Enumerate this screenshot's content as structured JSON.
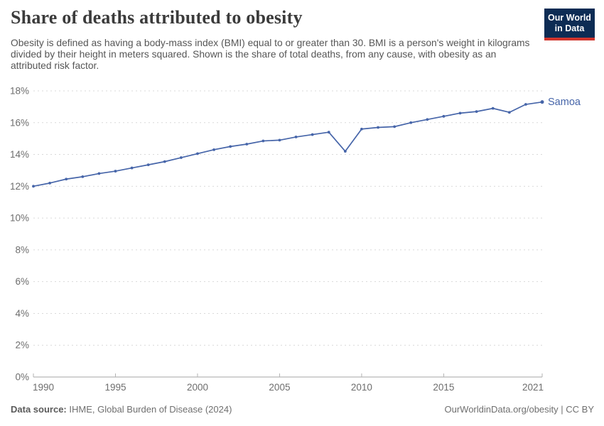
{
  "header": {
    "title": "Share of deaths attributed to obesity",
    "subtitle": "Obesity is defined as having a body-mass index (BMI) equal to or greater than 30. BMI is a person's weight in kilograms divided by their height in meters squared. Shown is the share of total deaths, from any cause, with obesity as an attributed risk factor.",
    "logo": {
      "line1": "Our World",
      "line2": "in Data"
    }
  },
  "chart_data": {
    "type": "line",
    "title": "Share of deaths attributed to obesity",
    "xlabel": "",
    "ylabel": "",
    "xlim": [
      1990,
      2021
    ],
    "ylim": [
      0,
      18
    ],
    "x_ticks": [
      1990,
      1995,
      2000,
      2005,
      2010,
      2015,
      2021
    ],
    "y_ticks": [
      0,
      2,
      4,
      6,
      8,
      10,
      12,
      14,
      16,
      18
    ],
    "y_tick_suffix": "%",
    "grid": "horizontal-dashed",
    "legend_position": "end-of-line-label",
    "series": [
      {
        "name": "Samoa",
        "color": "#4665a9",
        "x": [
          1990,
          1991,
          1992,
          1993,
          1994,
          1995,
          1996,
          1997,
          1998,
          1999,
          2000,
          2001,
          2002,
          2003,
          2004,
          2005,
          2006,
          2007,
          2008,
          2009,
          2010,
          2011,
          2012,
          2013,
          2014,
          2015,
          2016,
          2017,
          2018,
          2019,
          2020,
          2021
        ],
        "values": [
          12.0,
          12.2,
          12.45,
          12.6,
          12.8,
          12.95,
          13.15,
          13.35,
          13.55,
          13.8,
          14.05,
          14.3,
          14.5,
          14.65,
          14.85,
          14.9,
          15.1,
          15.25,
          15.4,
          14.2,
          15.6,
          15.7,
          15.75,
          16.0,
          16.2,
          16.4,
          16.6,
          16.7,
          16.9,
          16.65,
          17.15,
          17.3
        ]
      }
    ]
  },
  "footer": {
    "datasource_label": "Data source:",
    "datasource_value": " IHME, Global Burden of Disease (2024)",
    "link": "OurWorldinData.org/obesity | CC BY"
  },
  "colors": {
    "line": "#4665a9",
    "grid": "#d9d9d9",
    "axis": "#a5a5a5",
    "tick": "#b3b3b3",
    "tick_label": "#6d6d6d",
    "logo_bg": "#0d2c54",
    "logo_bar": "#d0342c",
    "title_text": "#3b3b3b"
  }
}
